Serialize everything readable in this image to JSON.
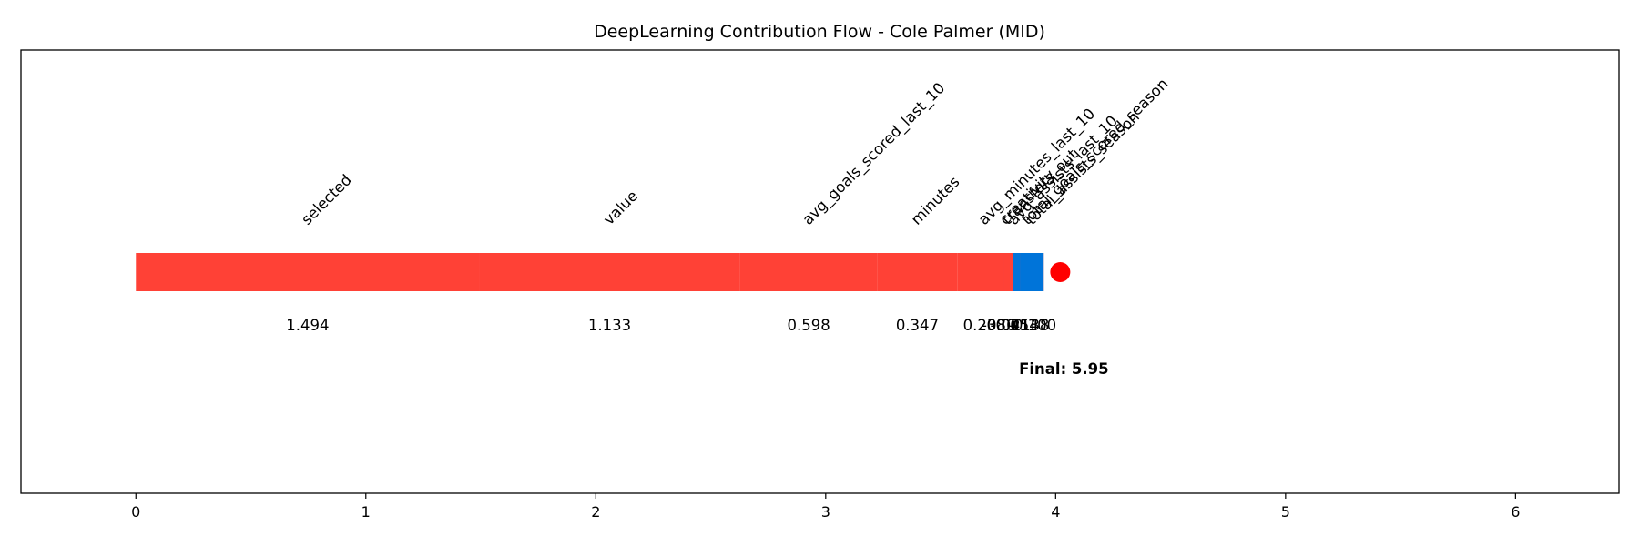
{
  "chart_data": {
    "type": "bar",
    "title": "DeepLearning Contribution Flow - Cole Palmer (MID)",
    "xlabel": "",
    "ylabel": "",
    "xlim": [
      -0.5,
      6.45
    ],
    "xticks": [
      0,
      1,
      2,
      3,
      4,
      5,
      6
    ],
    "grid": false,
    "features": [
      {
        "name": "selected",
        "value": 1.494,
        "value_label": "1.494"
      },
      {
        "name": "value",
        "value": 1.133,
        "value_label": "1.133"
      },
      {
        "name": "avg_goals_scored_last_10",
        "value": 0.598,
        "value_label": "0.598"
      },
      {
        "name": "minutes",
        "value": 0.347,
        "value_label": "0.347"
      },
      {
        "name": "avg_minutes_last_10",
        "value": 0.238,
        "value_label": "0.238"
      },
      {
        "name": "total_goals_scored_season",
        "value": 0.138,
        "value_label": "0.138"
      },
      {
        "name": "total_assists_season",
        "value": -0.1,
        "value_label": "-0.100"
      },
      {
        "name": "avg_assists_last_10",
        "value": -0.054,
        "value_label": "-0.054"
      },
      {
        "name": "creativity",
        "value": -0.021,
        "value_label": "-0.021"
      },
      {
        "name": "transfers_out",
        "value": 0.041,
        "value_label": "0.041"
      }
    ],
    "final_text": "Final: 5.95",
    "final_marker_x": 4.02,
    "colors": {
      "positive": "#ff4136",
      "negative": "#0074d9",
      "marker": "#ff0000"
    }
  }
}
